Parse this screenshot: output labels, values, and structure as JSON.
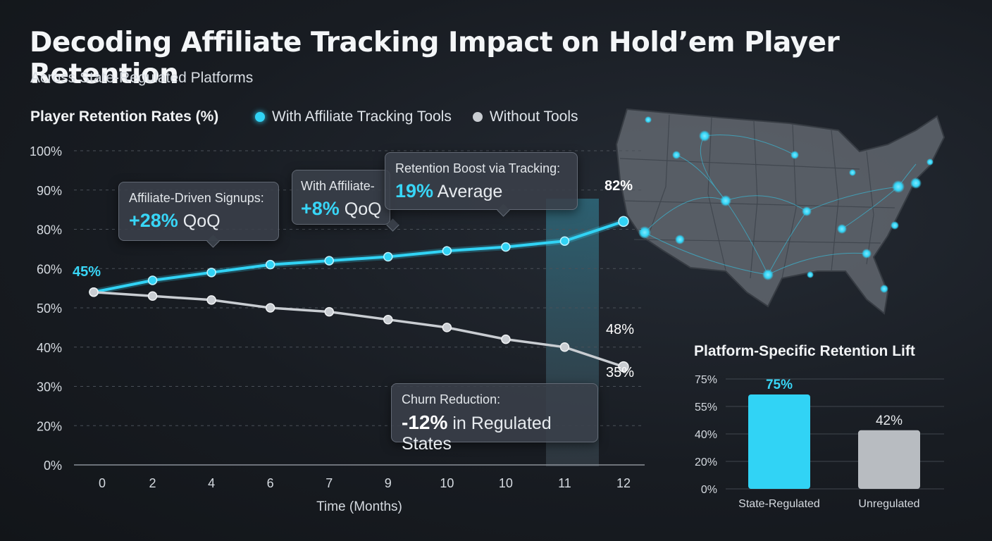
{
  "header": {
    "title": "Decoding Affiliate Tracking Impact on Hold’em Player Retention",
    "subtitle": "Across State-Regulated Platforms"
  },
  "colors": {
    "accent": "#31d3f5",
    "secondary": "#c9cdd2",
    "background": "#181c22"
  },
  "chart_data": [
    {
      "type": "line",
      "title": "Player Retention Rates (%)",
      "xlabel": "Time (Months)",
      "ylabel": "",
      "x": [
        "0",
        "2",
        "4",
        "6",
        "7",
        "9",
        "10",
        "10",
        "11",
        "12"
      ],
      "y_ticks": [
        "0%",
        "20%",
        "30%",
        "40%",
        "50%",
        "60%",
        "80%",
        "90%",
        "100%"
      ],
      "grid": true,
      "legend_position": "top",
      "series": [
        {
          "name": "With Affiliate Tracking Tools",
          "color": "#31d3f5",
          "values": [
            54,
            57,
            59,
            62,
            64,
            66,
            69,
            71,
            74,
            82
          ]
        },
        {
          "name": "Without Tools",
          "color": "#c9cdd2",
          "values": [
            54,
            53,
            52,
            50,
            49,
            47,
            45,
            42,
            40,
            35
          ]
        }
      ],
      "point_labels": [
        {
          "text": "45%"
        },
        {
          "text": "82%"
        },
        {
          "text": "48%"
        },
        {
          "text": "35%"
        }
      ],
      "annotations": [
        {
          "label": "Affiliate-Driven Signups:",
          "value": "+28%",
          "suffix": "QoQ"
        },
        {
          "label": "With Affiliate-",
          "value": "+8%",
          "suffix": "QoQ"
        },
        {
          "label": "Retention Boost via Tracking:",
          "value": "19%",
          "suffix": "Average"
        },
        {
          "label": "Churn Reduction:",
          "value": "-12%",
          "suffix": "in Regulated States"
        }
      ]
    },
    {
      "type": "bar",
      "title": "Platform-Specific Retention Lift",
      "categories": [
        "State-Regulated",
        "Unregulated"
      ],
      "values": [
        75,
        42
      ],
      "value_labels": [
        "75%",
        "42%"
      ],
      "colors": [
        "#31d3f5",
        "#b8bcc1"
      ],
      "y_ticks": [
        "0%",
        "20%",
        "40%",
        "55%",
        "75%"
      ],
      "grid": true
    }
  ]
}
